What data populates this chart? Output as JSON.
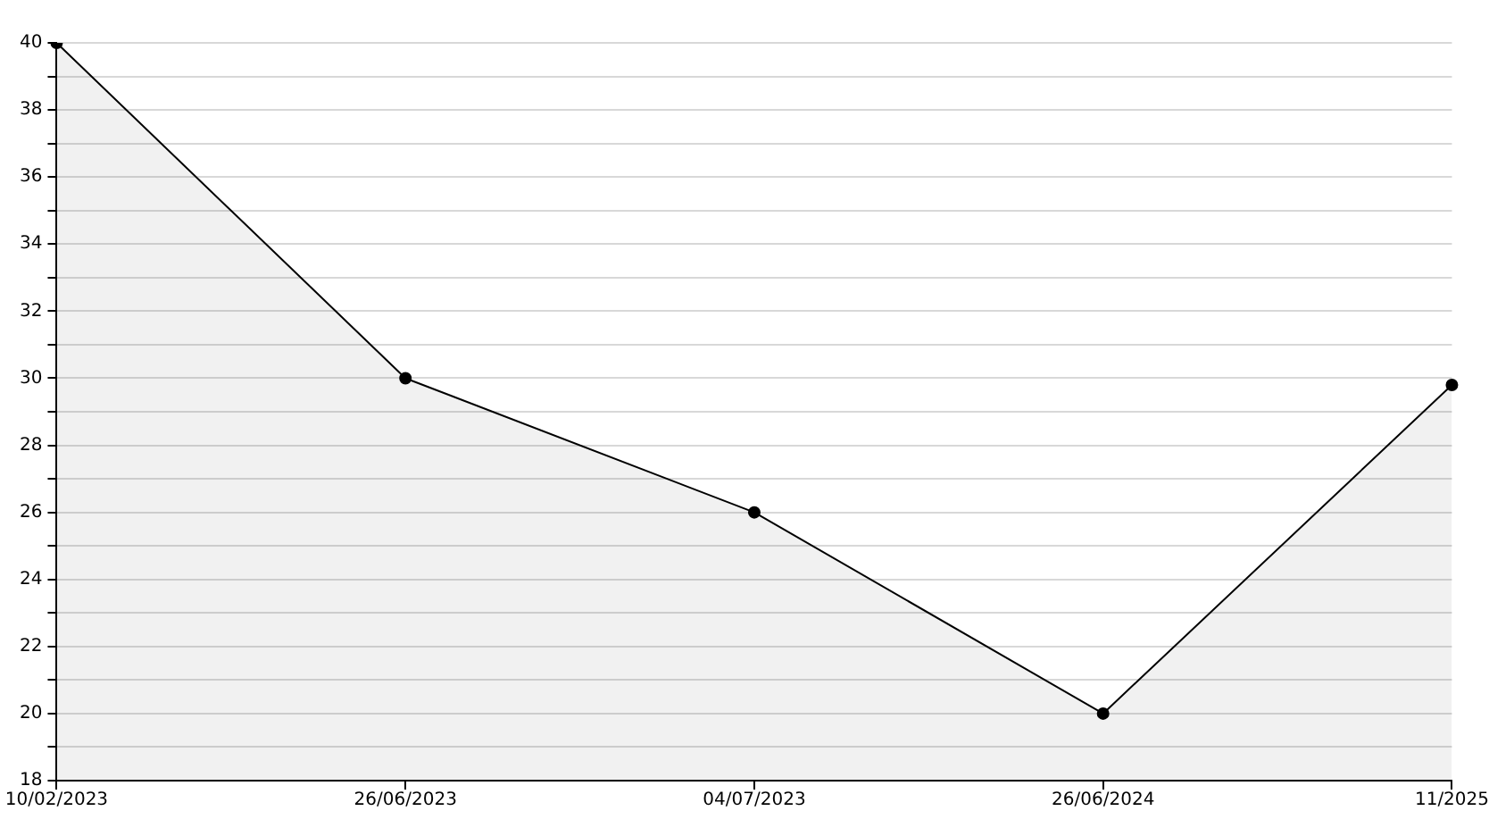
{
  "chart_data": {
    "type": "area",
    "categories": [
      "10/02/2023",
      "26/06/2023",
      "04/07/2023",
      "26/06/2024",
      "11/2025"
    ],
    "series": [
      {
        "color": "#000000",
        "values": [
          40,
          30,
          26,
          20,
          29.8
        ]
      }
    ],
    "ylim": [
      18,
      40
    ],
    "yticks": [
      18,
      {
        "value": 19,
        "label": null
      },
      20,
      {
        "value": 21,
        "label": null
      },
      22,
      {
        "value": 23,
        "label": null
      },
      24,
      {
        "value": 25,
        "label": null
      },
      26,
      {
        "value": 27,
        "label": null
      },
      28,
      {
        "value": 29,
        "label": null
      },
      30,
      {
        "value": 31,
        "label": null
      },
      32,
      {
        "value": 33,
        "label": null
      },
      34,
      {
        "value": 35,
        "label": null
      },
      36,
      {
        "value": 37,
        "label": null
      },
      38,
      {
        "value": 39,
        "label": null
      },
      40
    ],
    "grid": "y",
    "legend": false,
    "marker": "circle",
    "line_style": "solid"
  }
}
